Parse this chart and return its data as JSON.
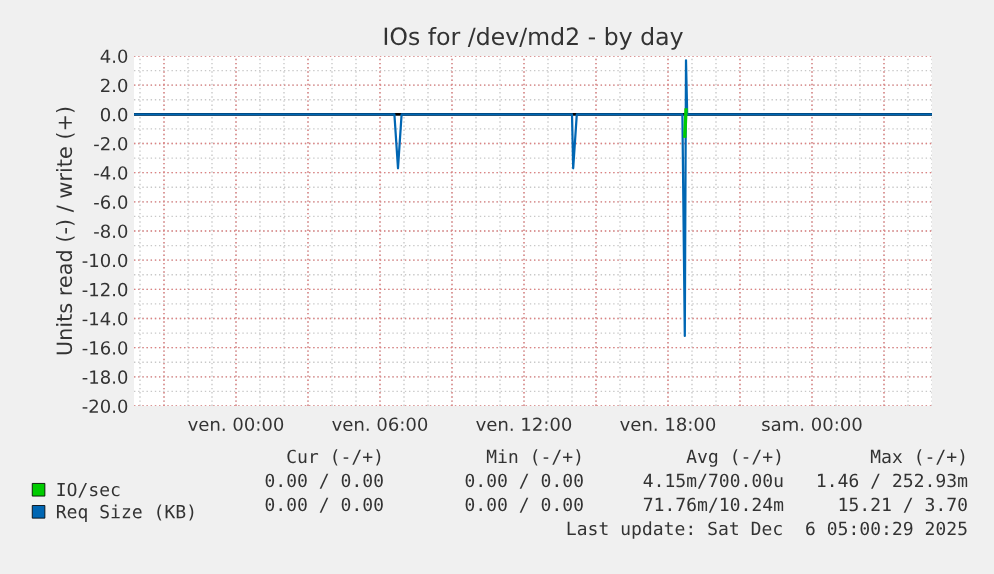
{
  "chart_data": {
    "type": "line",
    "title": "IOs for /dev/md2 - by day",
    "ylabel": "Units read (-) / write (+)",
    "xlim": [
      "2025-12-04T19:45",
      "2025-12-06T05:00"
    ],
    "xticks": [
      {
        "value": "2025-12-04T21:00",
        "label": null
      },
      {
        "value": "2025-12-05T00:00",
        "label": "ven. 00:00"
      },
      {
        "value": "2025-12-05T03:00",
        "label": null
      },
      {
        "value": "2025-12-05T06:00",
        "label": "ven. 06:00"
      },
      {
        "value": "2025-12-05T09:00",
        "label": null
      },
      {
        "value": "2025-12-05T12:00",
        "label": "ven. 12:00"
      },
      {
        "value": "2025-12-05T15:00",
        "label": null
      },
      {
        "value": "2025-12-05T18:00",
        "label": "ven. 18:00"
      },
      {
        "value": "2025-12-05T21:00",
        "label": null
      },
      {
        "value": "2025-12-06T00:00",
        "label": "sam. 00:00"
      },
      {
        "value": "2025-12-06T03:00",
        "label": null
      }
    ],
    "ylim": [
      -20,
      4
    ],
    "yticks": [
      {
        "value": 4,
        "label": "4.0"
      },
      {
        "value": 2,
        "label": "2.0"
      },
      {
        "value": 0,
        "label": "0.0"
      },
      {
        "value": -2,
        "label": "-2.0"
      },
      {
        "value": -4,
        "label": "-4.0"
      },
      {
        "value": -6,
        "label": "-6.0"
      },
      {
        "value": -8,
        "label": "-8.0"
      },
      {
        "value": -10,
        "label": "-10.0"
      },
      {
        "value": -12,
        "label": "-12.0"
      },
      {
        "value": -14,
        "label": "-14.0"
      },
      {
        "value": -16,
        "label": "-16.0"
      },
      {
        "value": -18,
        "label": "-18.0"
      },
      {
        "value": -20,
        "label": "-20.0"
      }
    ],
    "grid": true,
    "legend": "bottom left",
    "ref_lines": [
      {
        "axis": "y",
        "value": 0,
        "label": null,
        "color": "#000000"
      }
    ],
    "series": [
      {
        "name": "IO/sec",
        "color": "#00cc00",
        "x": [
          "2025-12-05T18:42",
          "2025-12-05T18:45"
        ],
        "values": [
          -1.5,
          0.3
        ]
      },
      {
        "name": "Req Size (KB)",
        "color": "#0066b3",
        "x": [
          "2025-12-04T19:45",
          "2025-12-05T06:36",
          "2025-12-05T06:45",
          "2025-12-05T06:54",
          "2025-12-05T14:00",
          "2025-12-05T14:03",
          "2025-12-05T14:12",
          "2025-12-05T18:36",
          "2025-12-05T18:42",
          "2025-12-05T18:45",
          "2025-12-05T18:48",
          "2025-12-06T05:00"
        ],
        "values": [
          0,
          0,
          -3.7,
          0,
          0,
          -3.7,
          0,
          0,
          -15.2,
          3.7,
          0,
          0
        ]
      }
    ],
    "annotations": [
      "Cur (-/+)",
      "Min (-/+)",
      "Avg (-/+)",
      "Max (-/+)",
      "0.00 / 0.00",
      "0.00 / 0.00",
      "4.15m/700.00u",
      "1.46 / 252.93m",
      "0.00 / 0.00",
      "0.00 / 0.00",
      "71.76m/10.24m",
      "15.21 / 3.70",
      "Last update: Sat Dec  6 05:00:29 2025"
    ]
  }
}
